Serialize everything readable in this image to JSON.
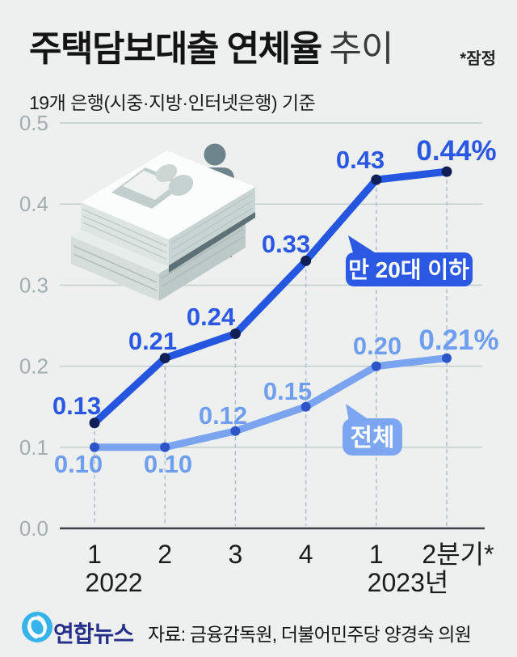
{
  "title": {
    "main": "주택담보대출 연체율",
    "sub": "추이",
    "note": "*잠정"
  },
  "subtitle": "19개 은행(시중·지방·인터넷은행) 기준",
  "chart_data": {
    "type": "line",
    "title": "주택담보대출 연체율 추이",
    "subtitle": "19개 은행(시중·지방·인터넷은행) 기준",
    "unit": "%",
    "ylim": [
      0.0,
      0.5
    ],
    "grid": "horizontal",
    "y_tick_labels": [
      "0.5",
      "0.4",
      "0.3",
      "0.2",
      "0.1",
      "0.0"
    ],
    "x_tick_labels": [
      "1",
      "2",
      "3",
      "4",
      "1",
      "2분기*"
    ],
    "x_group_labels": [
      "2022",
      "2023년"
    ],
    "series": [
      {
        "name": "만 20대 이하",
        "color": "#2456e0",
        "dot_color": "#101f56",
        "label_color": "#2a57e4",
        "values": [
          0.13,
          0.21,
          0.24,
          0.33,
          0.43,
          0.44
        ],
        "point_labels": [
          "0.13",
          "0.21",
          "0.24",
          "0.33",
          "0.43",
          "0.44%"
        ]
      },
      {
        "name": "전체",
        "color": "#7aa4ef",
        "dot_color": "#2d54c8",
        "label_color": "#6f9ef0",
        "values": [
          0.1,
          0.1,
          0.12,
          0.15,
          0.2,
          0.21
        ],
        "point_labels": [
          "0.10",
          "0.10",
          "0.12",
          "0.15",
          "0.20",
          "0.21%"
        ]
      }
    ],
    "callouts": [
      "만 20대 이하",
      "전체"
    ]
  },
  "footer": {
    "logo_text": "연합뉴스",
    "source": "자료: 금융감독원, 더불어민주당 양경숙 의원"
  },
  "colors": {
    "background": "#edf0ee",
    "grid": "#c1cbc9",
    "axis": "#3c4246",
    "axis_label": "#a2adb0",
    "tick_label": "#1c1c1c",
    "guide": "#aebfc5",
    "bubble_dark": "#2b59e3",
    "bubble_light": "#7ca6f1",
    "logo_blue": "#35b3ea",
    "logo_navy": "#262f8a"
  }
}
